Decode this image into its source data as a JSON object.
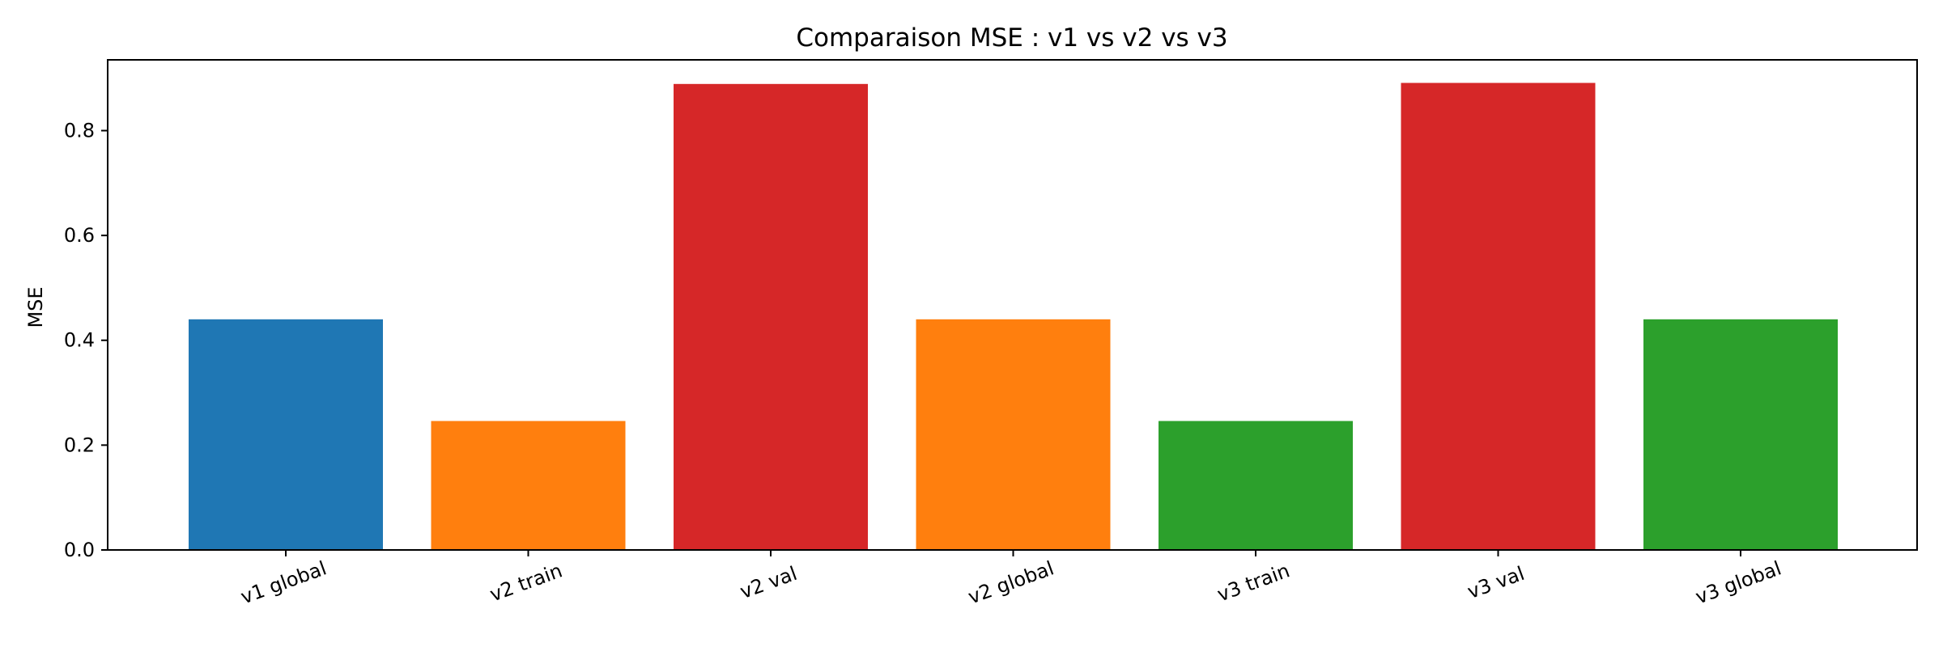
{
  "chart_data": {
    "type": "bar",
    "title": "Comparaison MSE : v1 vs v2 vs v3",
    "xlabel": "",
    "ylabel": "MSE",
    "categories": [
      "v1 global",
      "v2 train",
      "v2 val",
      "v2 global",
      "v3 train",
      "v3 val",
      "v3 global"
    ],
    "values": [
      0.44,
      0.246,
      0.889,
      0.44,
      0.246,
      0.891,
      0.44
    ],
    "colors": [
      "#1f77b4",
      "#ff7f0e",
      "#d62728",
      "#ff7f0e",
      "#2ca02c",
      "#d62728",
      "#2ca02c"
    ],
    "ylim": [
      0,
      0.935
    ],
    "yticks": [
      0.0,
      0.2,
      0.4,
      0.6,
      0.8
    ],
    "ytick_labels": [
      "0.0",
      "0.2",
      "0.4",
      "0.6",
      "0.8"
    ],
    "xtick_rotation": 20,
    "grid": false,
    "legend": "none"
  }
}
